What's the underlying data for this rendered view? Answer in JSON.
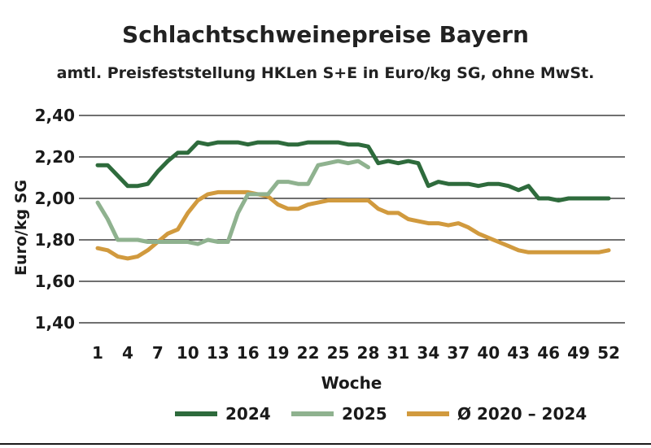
{
  "chart_data": {
    "type": "line",
    "title": "Schlachtschweinepreise Bayern",
    "subtitle": "amtl. Preisfeststellung HKLen S+E in Euro/kg SG, ohne MwSt.",
    "xlabel": "Woche",
    "ylabel": "Euro/kg SG",
    "ylim": [
      1.4,
      2.4
    ],
    "xlim": [
      1,
      52
    ],
    "y_ticks": [
      "1,40",
      "1,60",
      "1,80",
      "2,00",
      "2,20",
      "2,40"
    ],
    "y_tick_values": [
      1.4,
      1.6,
      1.8,
      2.0,
      2.2,
      2.4
    ],
    "x_ticks": [
      1,
      4,
      7,
      10,
      13,
      16,
      19,
      22,
      25,
      28,
      31,
      34,
      37,
      40,
      43,
      46,
      49,
      52
    ],
    "grid": "horizontal",
    "legend_position": "bottom",
    "series": [
      {
        "name": "2024",
        "color": "#2e6b3c",
        "x": [
          1,
          2,
          3,
          4,
          5,
          6,
          7,
          8,
          9,
          10,
          11,
          12,
          13,
          14,
          15,
          16,
          17,
          18,
          19,
          20,
          21,
          22,
          23,
          24,
          25,
          26,
          27,
          28,
          29,
          30,
          31,
          32,
          33,
          34,
          35,
          36,
          37,
          38,
          39,
          40,
          41,
          42,
          43,
          44,
          45,
          46,
          47,
          48,
          49,
          50,
          51,
          52
        ],
        "values": [
          2.16,
          2.16,
          2.11,
          2.06,
          2.06,
          2.07,
          2.13,
          2.18,
          2.22,
          2.22,
          2.27,
          2.26,
          2.27,
          2.27,
          2.27,
          2.26,
          2.27,
          2.27,
          2.27,
          2.26,
          2.26,
          2.27,
          2.27,
          2.27,
          2.27,
          2.26,
          2.26,
          2.25,
          2.17,
          2.18,
          2.17,
          2.18,
          2.17,
          2.06,
          2.08,
          2.07,
          2.07,
          2.07,
          2.06,
          2.07,
          2.07,
          2.06,
          2.04,
          2.06,
          2.0,
          2.0,
          1.99,
          2.0,
          2.0,
          2.0,
          2.0,
          2.0
        ]
      },
      {
        "name": "2025",
        "color": "#8fb28f",
        "x": [
          1,
          2,
          3,
          4,
          5,
          6,
          7,
          8,
          9,
          10,
          11,
          12,
          13,
          14,
          15,
          16,
          17,
          18,
          19,
          20,
          21,
          22,
          23,
          24,
          25,
          26,
          27,
          28
        ],
        "values": [
          1.98,
          1.9,
          1.8,
          1.8,
          1.8,
          1.79,
          1.79,
          1.79,
          1.79,
          1.79,
          1.78,
          1.8,
          1.79,
          1.79,
          1.93,
          2.02,
          2.02,
          2.02,
          2.08,
          2.08,
          2.07,
          2.07,
          2.16,
          2.17,
          2.18,
          2.17,
          2.18,
          2.15
        ]
      },
      {
        "name": "Ø 2020 – 2024",
        "color": "#d19a3e",
        "x": [
          1,
          2,
          3,
          4,
          5,
          6,
          7,
          8,
          9,
          10,
          11,
          12,
          13,
          14,
          15,
          16,
          17,
          18,
          19,
          20,
          21,
          22,
          23,
          24,
          25,
          26,
          27,
          28,
          29,
          30,
          31,
          32,
          33,
          34,
          35,
          36,
          37,
          38,
          39,
          40,
          41,
          42,
          43,
          44,
          45,
          46,
          47,
          48,
          49,
          50,
          51,
          52
        ],
        "values": [
          1.76,
          1.75,
          1.72,
          1.71,
          1.72,
          1.75,
          1.79,
          1.83,
          1.85,
          1.93,
          1.99,
          2.02,
          2.03,
          2.03,
          2.03,
          2.03,
          2.02,
          2.01,
          1.97,
          1.95,
          1.95,
          1.97,
          1.98,
          1.99,
          1.99,
          1.99,
          1.99,
          1.99,
          1.95,
          1.93,
          1.93,
          1.9,
          1.89,
          1.88,
          1.88,
          1.87,
          1.88,
          1.86,
          1.83,
          1.81,
          1.79,
          1.77,
          1.75,
          1.74,
          1.74,
          1.74,
          1.74,
          1.74,
          1.74,
          1.74,
          1.74,
          1.75
        ]
      }
    ]
  }
}
